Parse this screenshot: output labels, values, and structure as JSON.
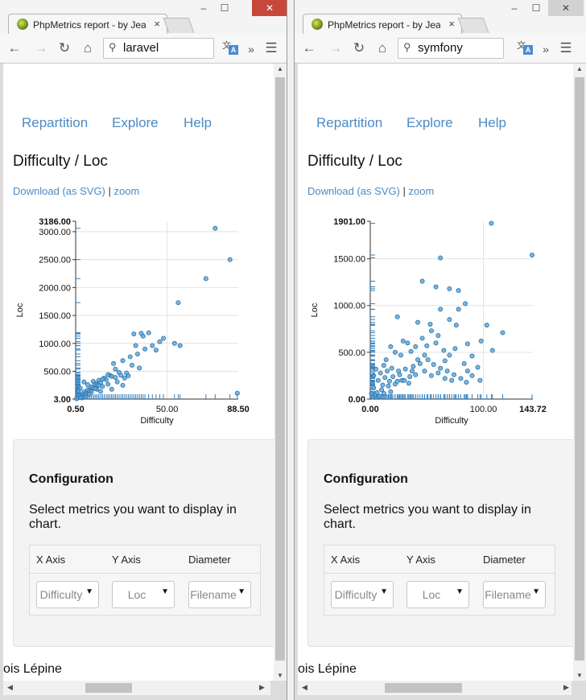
{
  "windows": [
    {
      "tab_title": "PhpMetrics report - by Jea",
      "tab_close": "×",
      "min": "‒",
      "max": "☐",
      "close": "✕",
      "url": "laravel",
      "nav": {
        "repartition": "Repartition",
        "explore": "Explore",
        "help": "Help"
      },
      "heading": "Difficulty / Loc",
      "download_label": "Download (as SVG)",
      "separator": "|",
      "zoom_label": "zoom",
      "config": {
        "heading": "Configuration",
        "text": "Select metrics you want to display in chart.",
        "columns": [
          "X Axis",
          "Y Axis",
          "Diameter"
        ],
        "selects": [
          "Difficulty",
          "Loc",
          "Filename"
        ]
      },
      "footer": "ois Lépine",
      "chart_data": {
        "type": "scatter",
        "xlabel": "Difficulty",
        "ylabel": "Loc",
        "x_ticks": [
          "0.50",
          "50.00",
          "88.50"
        ],
        "y_ticks": [
          "3.00",
          "500.00",
          "1000.00",
          "1500.00",
          "2000.00",
          "2500.00",
          "3000.00",
          "3186.00"
        ],
        "xlim": [
          0.5,
          88.5
        ],
        "ylim": [
          3,
          3186
        ],
        "points": [
          [
            76,
            3060
          ],
          [
            84,
            2500
          ],
          [
            71,
            2160
          ],
          [
            56,
            1730
          ],
          [
            88,
            110
          ],
          [
            54,
            1000
          ],
          [
            57,
            960
          ],
          [
            37,
            1130
          ],
          [
            32,
            1170
          ],
          [
            36,
            1180
          ],
          [
            40,
            1190
          ],
          [
            48,
            1090
          ],
          [
            46,
            1030
          ],
          [
            33,
            960
          ],
          [
            38,
            900
          ],
          [
            42,
            960
          ],
          [
            44,
            880
          ],
          [
            34,
            810
          ],
          [
            30,
            760
          ],
          [
            26,
            690
          ],
          [
            21,
            640
          ],
          [
            31,
            610
          ],
          [
            35,
            560
          ],
          [
            24,
            480
          ],
          [
            19,
            430
          ],
          [
            16,
            380
          ],
          [
            13,
            340
          ],
          [
            11,
            280
          ],
          [
            9,
            220
          ],
          [
            7,
            170
          ],
          [
            5,
            130
          ],
          [
            4,
            90
          ],
          [
            3,
            60
          ],
          [
            2,
            30
          ],
          [
            1.5,
            20
          ],
          [
            6,
            110
          ],
          [
            8,
            150
          ],
          [
            10,
            200
          ],
          [
            12,
            260
          ],
          [
            14,
            300
          ],
          [
            17,
            350
          ],
          [
            20,
            410
          ],
          [
            22,
            390
          ],
          [
            25,
            430
          ],
          [
            28,
            470
          ],
          [
            23,
            310
          ],
          [
            18,
            270
          ],
          [
            15,
            230
          ],
          [
            12,
            180
          ],
          [
            9,
            130
          ],
          [
            6,
            80
          ],
          [
            4,
            50
          ],
          [
            3,
            200
          ],
          [
            2,
            150
          ],
          [
            5,
            310
          ],
          [
            7,
            260
          ],
          [
            10,
            320
          ],
          [
            27,
            380
          ],
          [
            29,
            420
          ],
          [
            22,
            540
          ],
          [
            18,
            440
          ],
          [
            15,
            360
          ],
          [
            13,
            250
          ],
          [
            11,
            190
          ],
          [
            8,
            90
          ],
          [
            6,
            40
          ],
          [
            4,
            25
          ],
          [
            2,
            70
          ],
          [
            1,
            10
          ],
          [
            3,
            35
          ],
          [
            26,
            250
          ],
          [
            20,
            180
          ],
          [
            14,
            140
          ]
        ]
      }
    },
    {
      "tab_title": "PhpMetrics report - by Jea",
      "tab_close": "×",
      "min": "‒",
      "max": "☐",
      "close": "✕",
      "url": "symfony",
      "nav": {
        "repartition": "Repartition",
        "explore": "Explore",
        "help": "Help"
      },
      "heading": "Difficulty / Loc",
      "download_label": "Download (as SVG)",
      "separator": "|",
      "zoom_label": "zoom",
      "config": {
        "heading": "Configuration",
        "text": "Select metrics you want to display in chart.",
        "columns": [
          "X Axis",
          "Y Axis",
          "Diameter"
        ],
        "selects": [
          "Difficulty",
          "Loc",
          "Filename"
        ]
      },
      "footer": "ois Lépine",
      "chart_data": {
        "type": "scatter",
        "xlabel": "Difficulty",
        "ylabel": "Loc",
        "x_ticks": [
          "0.00",
          "100.00",
          "143.72"
        ],
        "y_ticks": [
          "0.00",
          "500.00",
          "1000.00",
          "1500.00",
          "1901.00"
        ],
        "xlim": [
          0,
          143.72
        ],
        "ylim": [
          0,
          1901
        ],
        "points": [
          [
            107,
            1880
          ],
          [
            143,
            1540
          ],
          [
            62,
            1510
          ],
          [
            46,
            1260
          ],
          [
            58,
            1200
          ],
          [
            70,
            1180
          ],
          [
            78,
            1160
          ],
          [
            84,
            1020
          ],
          [
            62,
            960
          ],
          [
            78,
            960
          ],
          [
            24,
            880
          ],
          [
            42,
            820
          ],
          [
            53,
            800
          ],
          [
            70,
            850
          ],
          [
            76,
            790
          ],
          [
            103,
            790
          ],
          [
            117,
            710
          ],
          [
            98,
            620
          ],
          [
            108,
            520
          ],
          [
            90,
            460
          ],
          [
            83,
            380
          ],
          [
            70,
            470
          ],
          [
            75,
            540
          ],
          [
            65,
            520
          ],
          [
            58,
            600
          ],
          [
            46,
            650
          ],
          [
            50,
            570
          ],
          [
            40,
            560
          ],
          [
            33,
            600
          ],
          [
            29,
            620
          ],
          [
            36,
            510
          ],
          [
            27,
            470
          ],
          [
            22,
            500
          ],
          [
            18,
            560
          ],
          [
            14,
            420
          ],
          [
            12,
            360
          ],
          [
            19,
            330
          ],
          [
            25,
            300
          ],
          [
            31,
            320
          ],
          [
            38,
            350
          ],
          [
            44,
            380
          ],
          [
            51,
            420
          ],
          [
            56,
            370
          ],
          [
            62,
            330
          ],
          [
            68,
            300
          ],
          [
            74,
            260
          ],
          [
            80,
            220
          ],
          [
            85,
            180
          ],
          [
            90,
            250
          ],
          [
            97,
            200
          ],
          [
            35,
            240
          ],
          [
            28,
            200
          ],
          [
            22,
            160
          ],
          [
            16,
            140
          ],
          [
            10,
            100
          ],
          [
            6,
            70
          ],
          [
            4,
            40
          ],
          [
            3,
            250
          ],
          [
            5,
            320
          ],
          [
            7,
            200
          ],
          [
            9,
            280
          ],
          [
            11,
            150
          ],
          [
            13,
            230
          ],
          [
            15,
            300
          ],
          [
            17,
            190
          ],
          [
            20,
            240
          ],
          [
            24,
            190
          ],
          [
            26,
            260
          ],
          [
            30,
            200
          ],
          [
            34,
            170
          ],
          [
            40,
            260
          ],
          [
            48,
            300
          ],
          [
            54,
            250
          ],
          [
            60,
            280
          ],
          [
            66,
            220
          ],
          [
            72,
            200
          ],
          [
            86,
            300
          ],
          [
            95,
            340
          ],
          [
            66,
            410
          ],
          [
            86,
            590
          ],
          [
            60,
            680
          ],
          [
            54,
            730
          ],
          [
            48,
            470
          ],
          [
            42,
            420
          ],
          [
            37,
            300
          ],
          [
            2,
            20
          ],
          [
            1,
            60
          ],
          [
            3,
            120
          ],
          [
            8,
            30
          ],
          [
            12,
            60
          ],
          [
            18,
            80
          ]
        ]
      }
    }
  ]
}
